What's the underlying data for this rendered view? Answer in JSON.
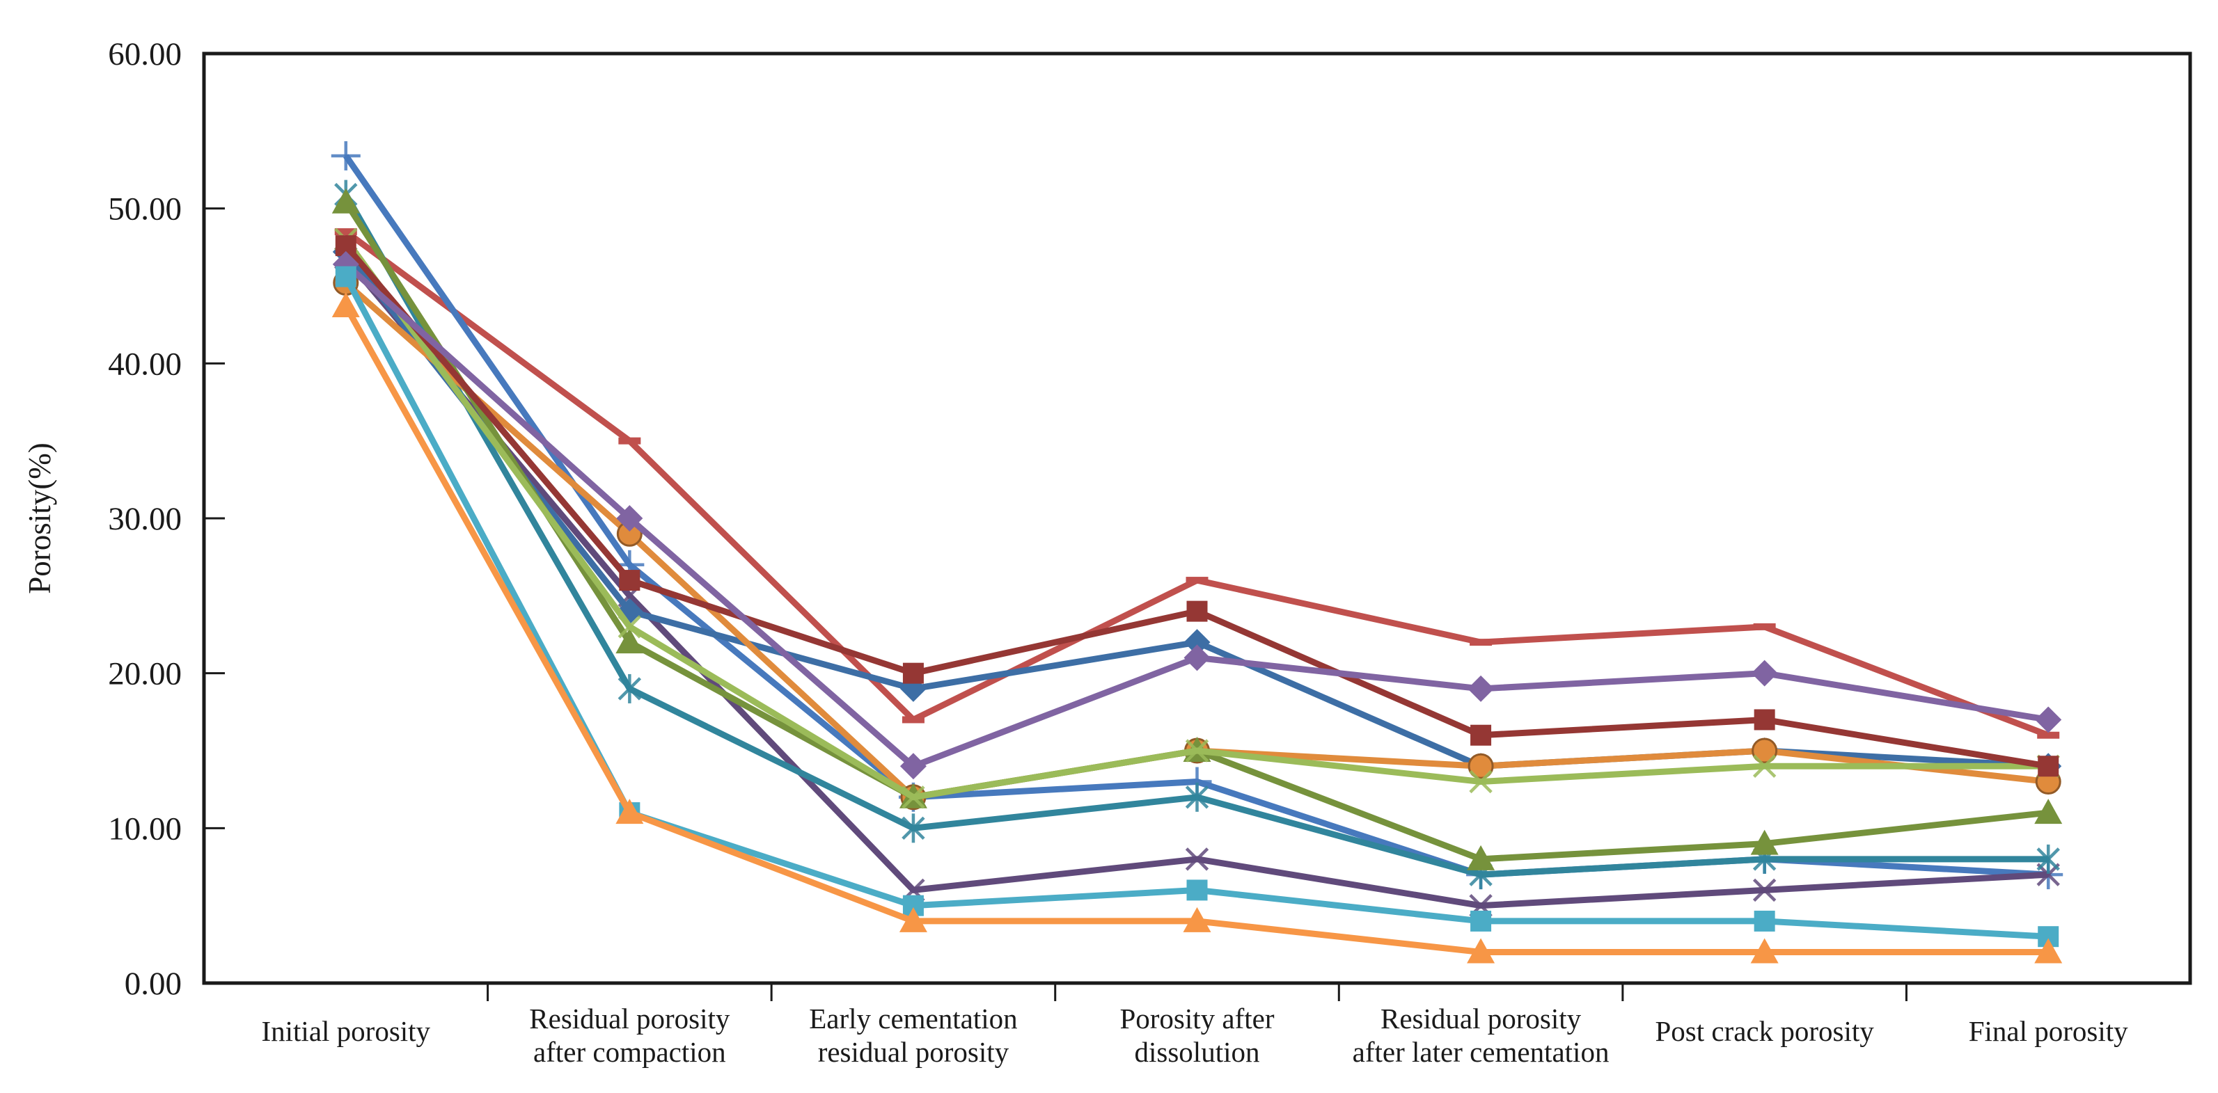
{
  "chart_data": {
    "type": "line",
    "title": "",
    "xlabel": "",
    "ylabel": "Porosity(%)",
    "ylim": [
      0,
      60
    ],
    "y_tick_step": 10,
    "y_tick_format_labels": [
      "0.00",
      "10.00",
      "20.00",
      "30.00",
      "40.00",
      "50.00",
      "60.00"
    ],
    "grid": "off",
    "legend": "none",
    "categories": [
      "Initial porosity",
      "Residual porosity after compaction",
      "Early cementation residual porosity",
      "Porosity after dissolution",
      "Residual porosity after later cementation",
      "Post crack porosity",
      "Final porosity"
    ],
    "category_label_lines": [
      [
        "Initial porosity"
      ],
      [
        "Residual porosity",
        "after compaction"
      ],
      [
        "Early cementation",
        "residual porosity"
      ],
      [
        "Porosity after",
        "dissolution"
      ],
      [
        "Residual porosity",
        "after later cementation"
      ],
      [
        "Post crack porosity",
        ""
      ],
      [
        "Final porosity"
      ]
    ],
    "series": [
      {
        "name": "red-dash-series",
        "marker": "dash",
        "color": "#C0504D",
        "values": [
          48.5,
          35,
          17,
          26,
          22,
          23,
          16
        ]
      },
      {
        "name": "blue-plus-series",
        "marker": "plus",
        "color": "#4779BD",
        "values": [
          53.4,
          27,
          12,
          13,
          7,
          8,
          7
        ]
      },
      {
        "name": "darkpurple-x-series",
        "marker": "x",
        "color": "#604A7B",
        "values": [
          46.8,
          25,
          6,
          8,
          5,
          6,
          7
        ]
      },
      {
        "name": "teal-asterisk-series",
        "marker": "asterisk",
        "color": "#31859C",
        "values": [
          50.9,
          19,
          10,
          12,
          7,
          8,
          8
        ]
      },
      {
        "name": "blue-diamond-series",
        "marker": "diamond",
        "color": "#3D6EA5",
        "values": [
          47.2,
          24,
          19,
          22,
          14,
          15,
          14
        ]
      },
      {
        "name": "orange-circle-series",
        "marker": "circle",
        "color": "#E08B3C",
        "values": [
          45.2,
          29,
          12,
          15,
          14,
          15,
          13
        ]
      },
      {
        "name": "olive-triangle-series",
        "marker": "triangle",
        "color": "#76923C",
        "values": [
          50.4,
          22,
          12,
          15,
          8,
          9,
          11
        ]
      },
      {
        "name": "lightgreen-x-series",
        "marker": "x",
        "color": "#9BBB59",
        "values": [
          48.0,
          23,
          12,
          15,
          13,
          14,
          14
        ]
      },
      {
        "name": "maroon-square-series",
        "marker": "square",
        "color": "#953734",
        "values": [
          47.6,
          26,
          20,
          24,
          16,
          17,
          14
        ]
      },
      {
        "name": "purple-diamond-series",
        "marker": "diamond",
        "color": "#8064A2",
        "values": [
          46.4,
          30,
          14,
          21,
          19,
          20,
          17
        ]
      },
      {
        "name": "cyan-square-series",
        "marker": "square",
        "color": "#4BACC6",
        "values": [
          45.6,
          11,
          5,
          6,
          4,
          4,
          3
        ]
      },
      {
        "name": "orange-triangle-series",
        "marker": "triangle",
        "color": "#F79646",
        "values": [
          43.7,
          11,
          4,
          4,
          2,
          2,
          2
        ]
      }
    ],
    "axis_color": "#1a1a1a"
  }
}
